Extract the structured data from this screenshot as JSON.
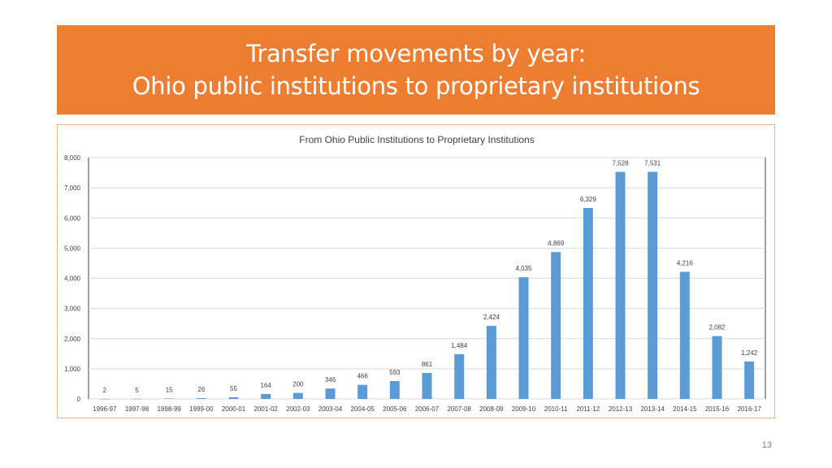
{
  "slide": {
    "title_line1": "Transfer movements by year:",
    "title_line2": "Ohio public institutions to proprietary institutions",
    "page_number": "13"
  },
  "colors": {
    "title_band": "#ED7D31",
    "bar": "#5B9BD5",
    "frame_border": "#F4B183"
  },
  "chart_data": {
    "type": "bar",
    "title": "From Ohio Public Institutions to Proprietary Institutions",
    "xlabel": "",
    "ylabel": "",
    "ylim": [
      0,
      8000
    ],
    "yticks": [
      0,
      1000,
      2000,
      3000,
      4000,
      5000,
      6000,
      7000,
      8000
    ],
    "ytick_labels": [
      "0",
      "1,000",
      "2,000",
      "3,000",
      "4,000",
      "5,000",
      "6,000",
      "7,000",
      "8,000"
    ],
    "grid": true,
    "legend": "none",
    "categories": [
      "1996-97",
      "1997-98",
      "1998-99",
      "1999-00",
      "2000-01",
      "2001-02",
      "2002-03",
      "2003-04",
      "2004-05",
      "2005-06",
      "2006-07",
      "2007-08",
      "2008-09",
      "2009-10",
      "2010-11",
      "2011-12",
      "2012-13",
      "2013-14",
      "2014-15",
      "2015-16",
      "2016-17"
    ],
    "values": [
      2,
      5,
      15,
      26,
      55,
      164,
      200,
      346,
      466,
      593,
      861,
      1484,
      2424,
      4035,
      4869,
      6329,
      7528,
      7531,
      4216,
      2082,
      1242
    ],
    "value_labels": [
      "2",
      "5",
      "15",
      "26",
      "55",
      "164",
      "200",
      "346",
      "466",
      "593",
      "861",
      "1,484",
      "2,424",
      "4,035",
      "4,869",
      "6,329",
      "7,528",
      "7,531",
      "4,216",
      "2,082",
      "1,242"
    ]
  }
}
